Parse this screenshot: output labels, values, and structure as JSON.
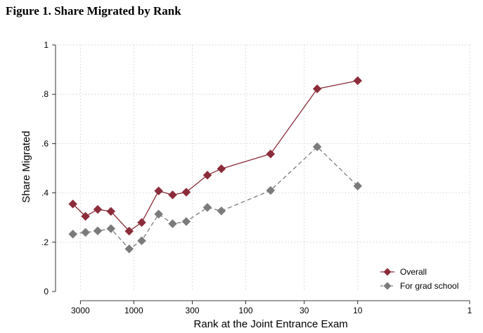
{
  "figure_title": "Figure 1. Share Migrated by Rank",
  "chart_data": {
    "type": "line",
    "title": "Figure 1. Share Migrated by Rank",
    "xlabel": "Rank at the Joint Entrance Exam",
    "ylabel": "Share Migrated",
    "x_scale": "log-reversed",
    "xlim": [
      5000,
      1
    ],
    "ylim": [
      0,
      1
    ],
    "x_ticks": [
      3000,
      1000,
      300,
      100,
      30,
      10,
      1
    ],
    "x_tick_labels": [
      "3000",
      "1000",
      "300",
      "100",
      "30",
      "10",
      "1"
    ],
    "y_ticks": [
      0,
      0.2,
      0.4,
      0.6,
      0.8,
      1
    ],
    "y_tick_labels": [
      "0",
      ".2",
      ".4",
      ".6",
      ".8",
      "1"
    ],
    "grid": true,
    "legend_position": "bottom-right",
    "x": [
      3500,
      2700,
      2100,
      1600,
      1100,
      850,
      600,
      450,
      340,
      220,
      165,
      60,
      23,
      10
    ],
    "series": [
      {
        "name": "Overall",
        "color": "#8b2c3a",
        "dash": "solid",
        "values": [
          0.355,
          0.305,
          0.333,
          0.325,
          0.245,
          0.28,
          0.408,
          0.392,
          0.403,
          0.472,
          0.498,
          0.558,
          0.822,
          0.855
        ]
      },
      {
        "name": "For grad school",
        "color": "#7b7b7b",
        "dash": "dashed",
        "values": [
          0.233,
          0.24,
          0.246,
          0.255,
          0.173,
          0.206,
          0.314,
          0.275,
          0.284,
          0.341,
          0.327,
          0.41,
          0.587,
          0.428
        ]
      }
    ]
  }
}
